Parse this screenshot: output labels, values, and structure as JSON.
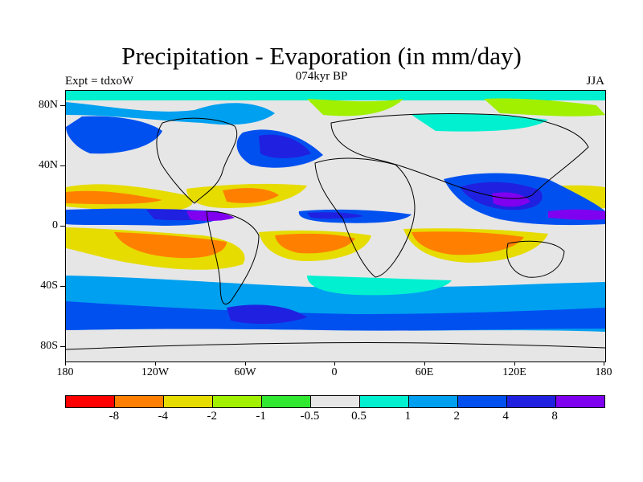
{
  "title": "Precipitation - Evaporation (in mm/day)",
  "subtitle_center": "074kyr BP",
  "subtitle_left": "Expt = tdxoW",
  "subtitle_right": "JJA",
  "y_axis_labels": [
    "80N",
    "40N",
    "0",
    "40S",
    "80S"
  ],
  "x_axis_labels": [
    "180",
    "120W",
    "60W",
    "0",
    "60E",
    "120E",
    "180"
  ],
  "colorbar": {
    "colors": [
      "#ff0000",
      "#ff8000",
      "#e6dc00",
      "#a0f000",
      "#30e830",
      "#e6e6e6",
      "#00f0d0",
      "#00a0f0",
      "#0050f0",
      "#2020e0",
      "#8000f0"
    ],
    "labels": [
      "-8",
      "-4",
      "-2",
      "-1",
      "-0.5",
      "0.5",
      "1",
      "2",
      "4",
      "8"
    ]
  },
  "palette": {
    "background": "#e6e6e6",
    "light_blue": "#00a0f0",
    "cyan": "#00f0d0",
    "blue": "#0050f0",
    "deep_blue": "#2020e0",
    "purple": "#8000f0",
    "orange": "#ff8000",
    "yellow": "#e6dc00",
    "yellow_green": "#a0f000",
    "green": "#30e830"
  }
}
